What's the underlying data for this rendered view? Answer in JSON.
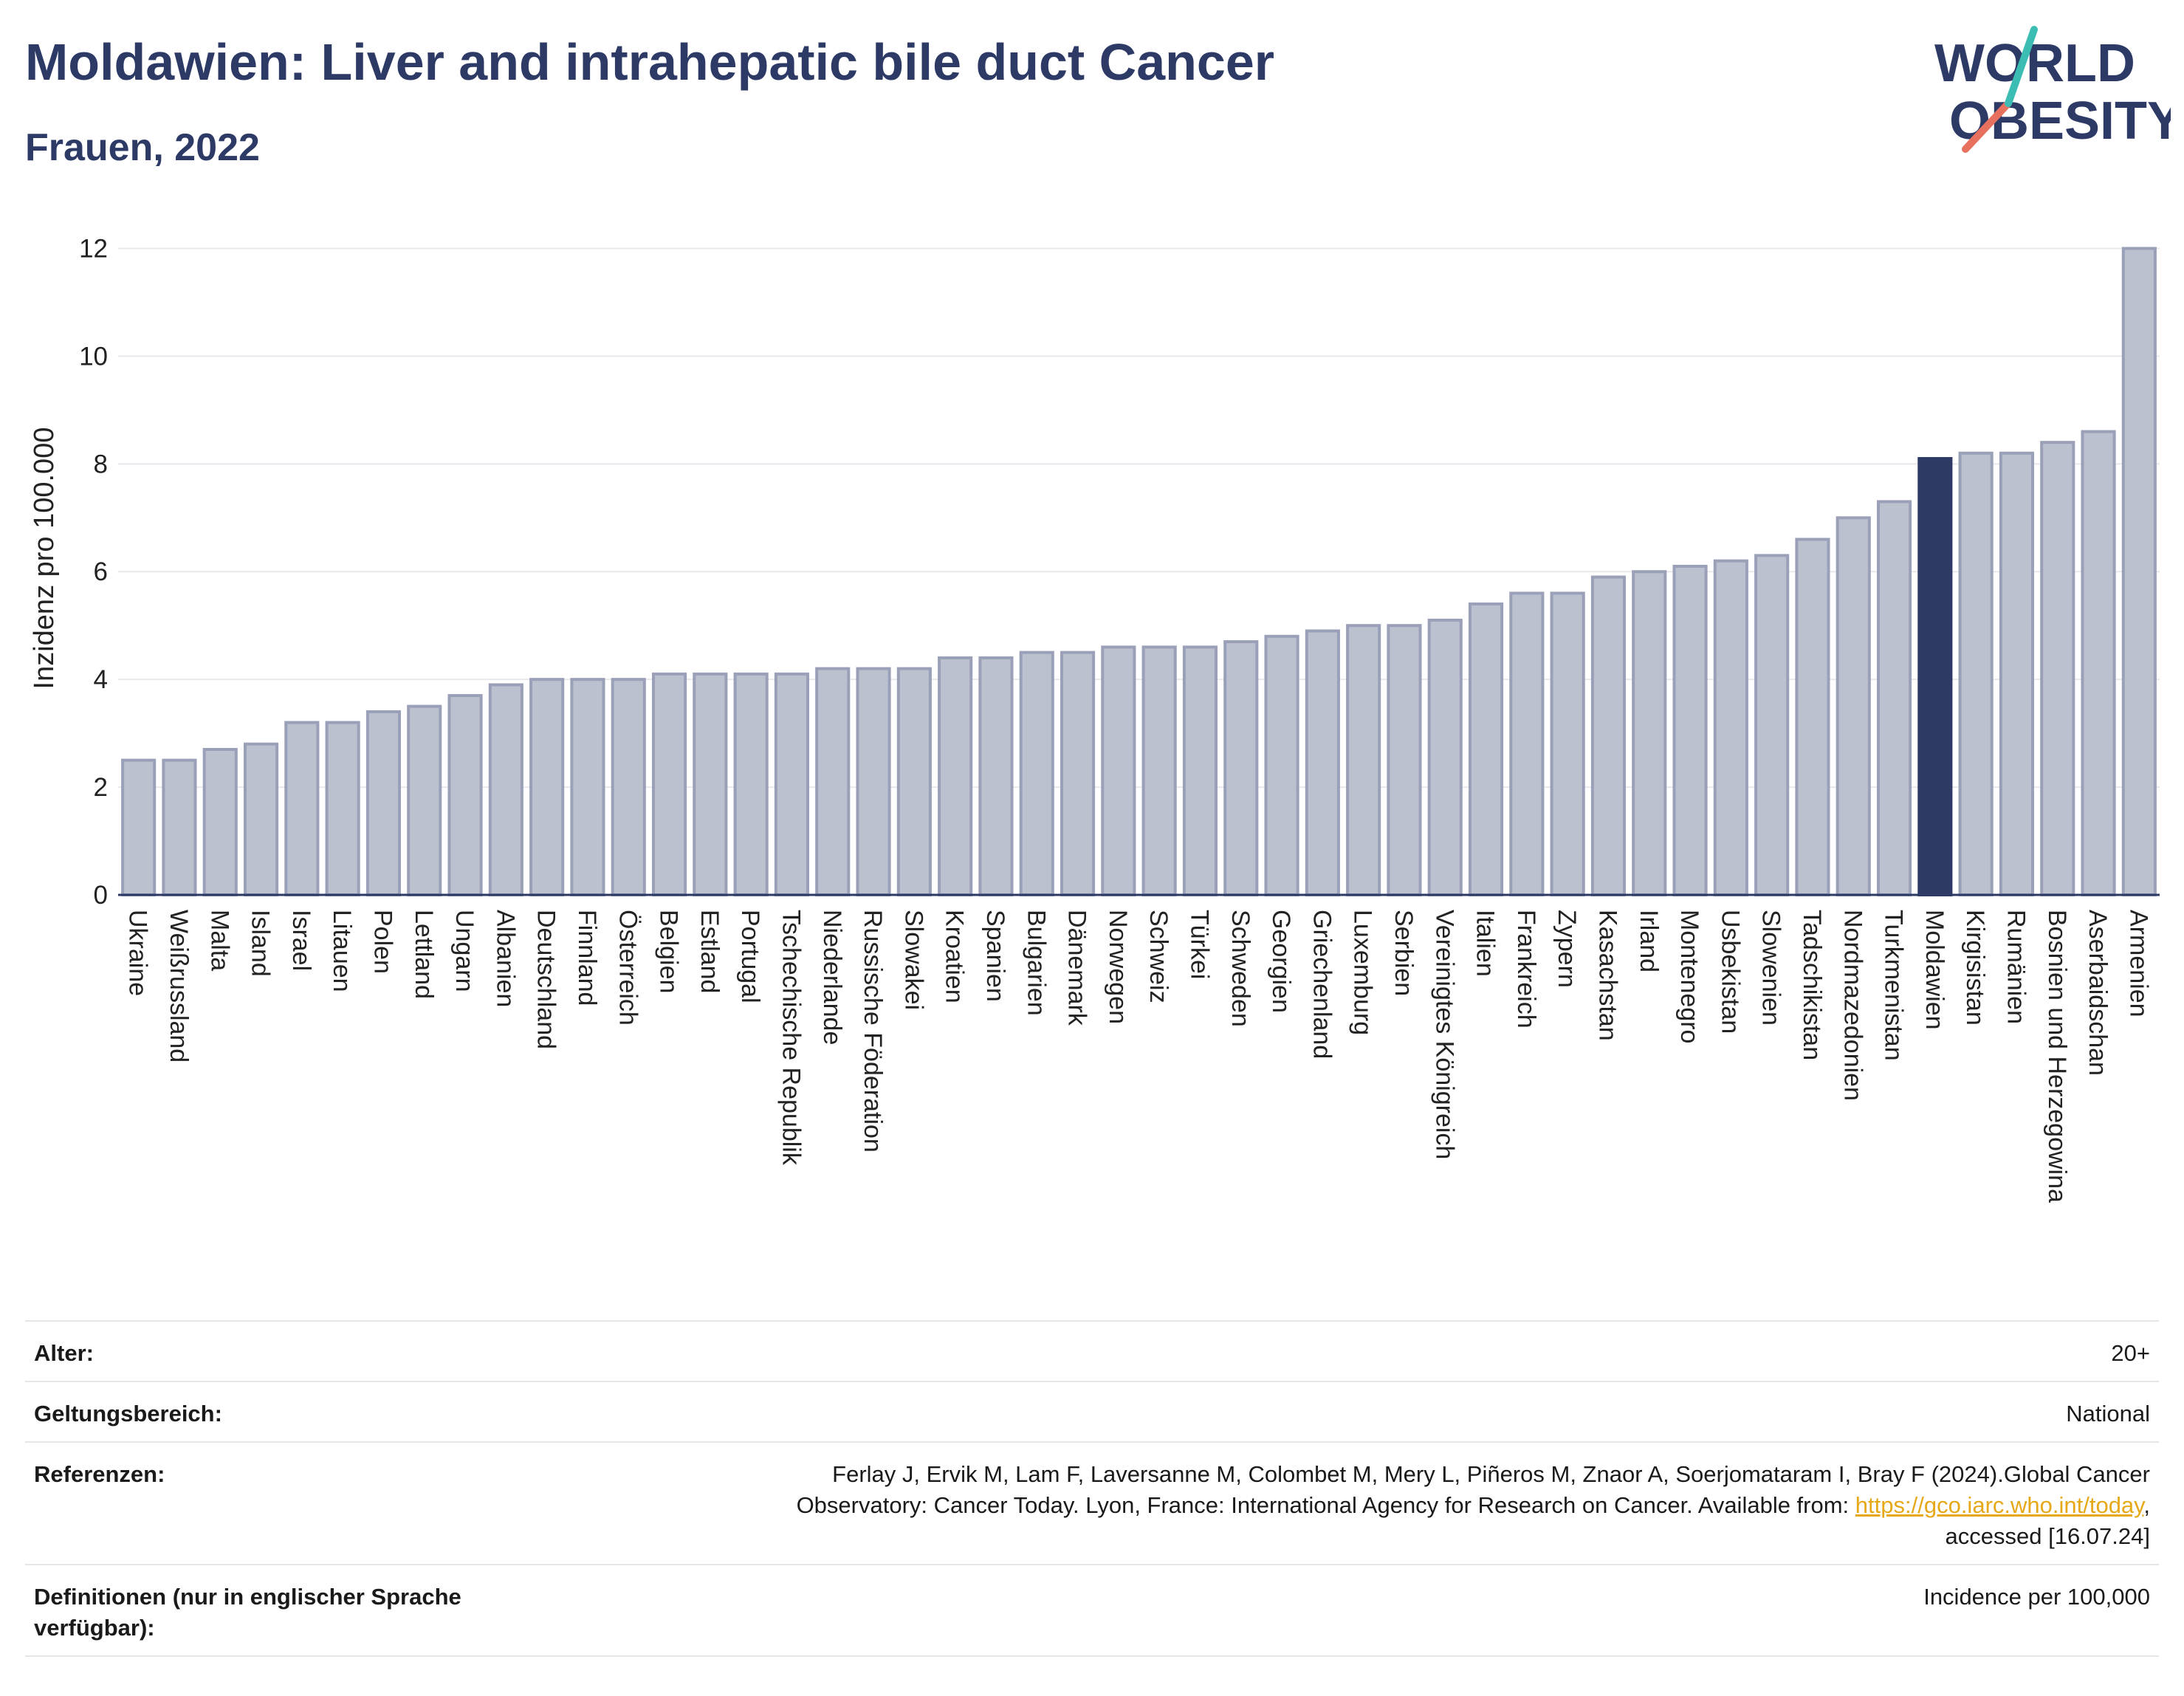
{
  "header": {
    "title": "Moldawien: Liver and intrahepatic bile duct Cancer",
    "subtitle": "Frauen, 2022"
  },
  "logo": {
    "line1": "WORLD",
    "line2": "OBESITY",
    "colors": [
      "#2d3a66",
      "#e8705f",
      "#3bbdb4"
    ]
  },
  "chart_data": {
    "type": "bar",
    "ylabel": "Inzidenz pro 100.000",
    "ylim": [
      0,
      12.5
    ],
    "yticks": [
      0,
      2,
      4,
      6,
      8,
      10,
      12
    ],
    "grid": true,
    "highlight": "Moldawien",
    "colors": {
      "bar": "#bcc1d0",
      "bar_border": "#9aa0b8",
      "highlight": "#2d3a66"
    },
    "categories": [
      "Ukraine",
      "Weißrussland",
      "Malta",
      "Island",
      "Israel",
      "Litauen",
      "Polen",
      "Lettland",
      "Ungarn",
      "Albanien",
      "Deutschland",
      "Finnland",
      "Österreich",
      "Belgien",
      "Estland",
      "Portugal",
      "Tschechische Republik",
      "Niederlande",
      "Russische Föderation",
      "Slowakei",
      "Kroatien",
      "Spanien",
      "Bulgarien",
      "Dänemark",
      "Norwegen",
      "Schweiz",
      "Türkei",
      "Schweden",
      "Georgien",
      "Griechenland",
      "Luxemburg",
      "Serbien",
      "Vereinigtes Königreich",
      "Italien",
      "Frankreich",
      "Zypern",
      "Kasachstan",
      "Irland",
      "Montenegro",
      "Usbekistan",
      "Slowenien",
      "Tadschikistan",
      "Nordmazedonien",
      "Turkmenistan",
      "Moldawien",
      "Kirgisistan",
      "Rumänien",
      "Bosnien und Herzegowina",
      "Aserbaidschan",
      "Armenien"
    ],
    "values": [
      2.5,
      2.5,
      2.7,
      2.8,
      3.2,
      3.2,
      3.4,
      3.5,
      3.7,
      3.9,
      4.0,
      4.0,
      4.0,
      4.1,
      4.1,
      4.1,
      4.1,
      4.2,
      4.2,
      4.2,
      4.4,
      4.4,
      4.5,
      4.5,
      4.6,
      4.6,
      4.6,
      4.7,
      4.8,
      4.9,
      5.0,
      5.0,
      5.1,
      5.4,
      5.6,
      5.6,
      5.9,
      6.0,
      6.1,
      6.2,
      6.3,
      6.6,
      7.0,
      7.3,
      8.1,
      8.2,
      8.2,
      8.4,
      8.6,
      12.0
    ]
  },
  "meta": {
    "age_label": "Alter:",
    "age_value": "20+",
    "scope_label": "Geltungsbereich:",
    "scope_value": "National",
    "ref_label": "Referenzen:",
    "ref_text1": "Ferlay J, Ervik M, Lam F, Laversanne M, Colombet M, Mery L, Piñeros M, Znaor A, Soerjomataram I, Bray F (2024).Global Cancer",
    "ref_text2": "Observatory: Cancer Today. Lyon, France: International Agency for Research on Cancer. Available from: ",
    "ref_link": "https://gco.iarc.who.int/today",
    "ref_text3": ",",
    "ref_text4": "accessed [16.07.24]",
    "def_label": "Definitionen (nur in englischer Sprache verfügbar):",
    "def_value": "Incidence per 100,000"
  }
}
